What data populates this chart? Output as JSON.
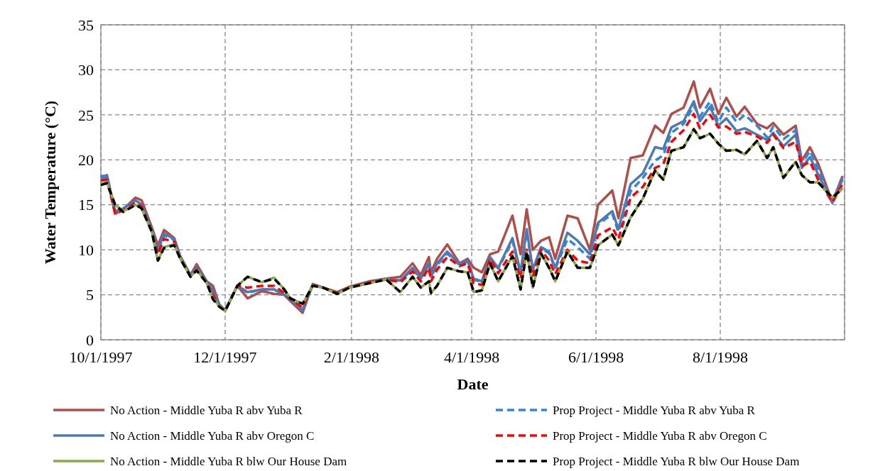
{
  "chart_data": {
    "type": "line",
    "xlabel": "Date",
    "ylabel": "Water Temperature (°C)",
    "x": [
      "1997-10-01",
      "1997-10-04",
      "1997-10-08",
      "1997-10-12",
      "1997-10-18",
      "1997-10-21",
      "1997-10-26",
      "1997-10-29",
      "1997-11-01",
      "1997-11-06",
      "1997-11-09",
      "1997-11-14",
      "1997-11-17",
      "1997-11-22",
      "1997-11-25",
      "1997-11-28",
      "1997-12-01",
      "1997-12-07",
      "1997-12-12",
      "1997-12-19",
      "1997-12-25",
      "1997-12-30",
      "1998-01-02",
      "1998-01-08",
      "1998-01-13",
      "1998-01-18",
      "1998-01-25",
      "1998-01-31",
      "1998-02-10",
      "1998-02-18",
      "1998-02-25",
      "1998-03-03",
      "1998-03-07",
      "1998-03-11",
      "1998-03-12",
      "1998-03-15",
      "1998-03-20",
      "1998-03-26",
      "1998-03-30",
      "1998-04-02",
      "1998-04-06",
      "1998-04-10",
      "1998-04-14",
      "1998-04-21",
      "1998-04-25",
      "1998-04-28",
      "1998-05-01",
      "1998-05-05",
      "1998-05-09",
      "1998-05-12",
      "1998-05-18",
      "1998-05-23",
      "1998-05-29",
      "1998-06-02",
      "1998-06-09",
      "1998-06-12",
      "1998-06-18",
      "1998-06-24",
      "1998-06-30",
      "1998-07-04",
      "1998-07-08",
      "1998-07-14",
      "1998-07-19",
      "1998-07-22",
      "1998-07-27",
      "1998-07-31",
      "1998-08-04",
      "1998-08-09",
      "1998-08-13",
      "1998-08-19",
      "1998-08-24",
      "1998-08-27",
      "1998-09-01",
      "1998-09-07",
      "1998-09-10",
      "1998-09-14",
      "1998-09-18",
      "1998-09-25",
      "1998-09-30"
    ],
    "series": [
      {
        "name": "No Action - Middle Yuba R abv Yuba R",
        "color": "#b04f4a",
        "line_style": "solid",
        "values": [
          18,
          18.3,
          14,
          14.5,
          15.8,
          15.5,
          12.5,
          10.5,
          12.2,
          11.3,
          9.3,
          7.2,
          8.4,
          6.5,
          6,
          4,
          3.2,
          6,
          4.6,
          5.4,
          5.1,
          5,
          4.3,
          3,
          6.2,
          5.8,
          5.3,
          5.9,
          6.5,
          6.8,
          7,
          8.5,
          7.2,
          9.2,
          7.5,
          9,
          10.6,
          8.5,
          9,
          8,
          7.5,
          9.5,
          9.8,
          13.8,
          9.5,
          14.5,
          10,
          11,
          11.4,
          9,
          13.8,
          13.5,
          10,
          15,
          16.6,
          13.5,
          20.2,
          20.5,
          23.8,
          23,
          25.1,
          25.8,
          28.7,
          25.8,
          27.9,
          25.1,
          26.9,
          24.8,
          25.9,
          24,
          23.5,
          24.1,
          22.8,
          23.8,
          19.9,
          21.4,
          19.6,
          15.3,
          18.2
        ]
      },
      {
        "name": "Prop Project - Middle Yuba R abv Yuba R",
        "color": "#2e86de",
        "line_style": "dashed",
        "values": [
          17.9,
          18,
          14.2,
          14.5,
          15.5,
          15,
          12.3,
          9.8,
          11.6,
          11.1,
          9.1,
          7.1,
          8,
          6.4,
          5.3,
          3.9,
          3.3,
          6,
          5.2,
          5.6,
          5.6,
          5,
          4.4,
          3.3,
          6.1,
          5.8,
          5.2,
          5.8,
          6.4,
          6.7,
          6.6,
          7.8,
          6.8,
          8.4,
          7,
          8.3,
          9.6,
          8.3,
          8.7,
          6.7,
          6.4,
          9.1,
          7.9,
          11,
          7.3,
          12,
          7.6,
          10.2,
          9.6,
          7.9,
          11.2,
          10.3,
          9,
          12.8,
          14,
          12,
          16.5,
          18,
          19.9,
          20.5,
          23,
          24,
          26,
          24.8,
          26.5,
          24.2,
          25.8,
          24.2,
          25,
          23.8,
          22.5,
          23.7,
          22.3,
          23.3,
          19.5,
          21,
          19,
          15.2,
          18
        ]
      },
      {
        "name": "No Action - Middle Yuba R abv Oregon C",
        "color": "#4a7ab8",
        "line_style": "solid",
        "values": [
          18.2,
          18.2,
          14.3,
          14.6,
          15.5,
          15,
          12.3,
          10,
          11.8,
          11.2,
          9.2,
          7.1,
          8.1,
          6.4,
          5.5,
          3.9,
          3.3,
          6,
          5.3,
          5.6,
          5.6,
          5,
          4.4,
          3.3,
          6.1,
          5.8,
          5.2,
          5.8,
          6.4,
          6.7,
          6.6,
          8,
          6.8,
          8.5,
          7,
          8.5,
          9.8,
          8.4,
          8.8,
          6.8,
          6.5,
          9.2,
          8,
          11.3,
          7.5,
          12.3,
          7.8,
          10.3,
          9.8,
          8,
          11.9,
          11,
          9.5,
          13,
          14.3,
          12.3,
          17.3,
          18.5,
          21.4,
          21.2,
          23.6,
          24.3,
          26.5,
          24.3,
          25.9,
          23.8,
          24.6,
          23.2,
          23.5,
          22.8,
          22.2,
          23,
          21.5,
          22.8,
          19.1,
          20.3,
          18.4,
          15.2,
          17.8
        ]
      },
      {
        "name": "Prop Project - Middle Yuba R abv Oregon C",
        "color": "#ff0000",
        "line_style": "dashed",
        "values": [
          17.7,
          17.8,
          14,
          14.4,
          15.2,
          14.8,
          12.1,
          9.5,
          11.2,
          10.9,
          9,
          7,
          7.9,
          6.3,
          5,
          3.8,
          3.3,
          6,
          5.8,
          6,
          6,
          5.2,
          4.5,
          3.6,
          6.1,
          5.8,
          5.2,
          5.8,
          6.4,
          6.7,
          6.4,
          7.6,
          6.5,
          8,
          6.5,
          7.8,
          9.2,
          8.2,
          8.5,
          6.3,
          6.1,
          9,
          7.4,
          9.8,
          6.8,
          10,
          7,
          10,
          8.8,
          7.3,
          10,
          8.8,
          8.5,
          11.6,
          12.5,
          11.2,
          15.8,
          17,
          19.1,
          19.5,
          22,
          23.3,
          25.1,
          23.5,
          25,
          23.6,
          23.7,
          22.9,
          23.1,
          22.6,
          21.9,
          22.8,
          21.3,
          22,
          19.3,
          19.8,
          17.8,
          15.3,
          17.3
        ]
      },
      {
        "name": "No Action - Middle Yuba R blw Our House Dam",
        "color": "#8aaa4c",
        "line_style": "solid",
        "values": [
          17.3,
          17.5,
          15,
          14.3,
          15,
          14.6,
          12,
          8.8,
          10.3,
          10.6,
          9,
          7,
          7.8,
          6.3,
          4.6,
          3.8,
          3.2,
          6,
          7,
          6.4,
          6.9,
          5.6,
          4.6,
          4,
          6,
          5.8,
          5.1,
          5.8,
          6.3,
          6.7,
          5.3,
          7,
          5.8,
          6.5,
          5.2,
          6,
          8,
          7.6,
          7.5,
          5.3,
          5.5,
          8.5,
          6.5,
          9.3,
          5.6,
          9.8,
          5.8,
          9.6,
          8,
          6.5,
          9.8,
          8,
          8,
          10.5,
          11.7,
          10.5,
          13.6,
          15.7,
          18.8,
          17.8,
          21,
          21.4,
          23.4,
          22.4,
          22.9,
          21.8,
          21,
          21.1,
          20.6,
          22.1,
          20.2,
          21.4,
          18,
          19.8,
          18.3,
          17.5,
          17.5,
          15.8,
          16.8
        ]
      },
      {
        "name": "Prop Project - Middle Yuba R blw Our House Dam",
        "color": "#000000",
        "line_style": "dashed",
        "values": [
          17.2,
          17.4,
          15,
          14.2,
          15,
          14.6,
          12,
          8.8,
          10.2,
          10.5,
          9,
          7,
          7.7,
          6.3,
          4.5,
          3.7,
          3.2,
          6,
          7,
          6.4,
          6.8,
          5.6,
          4.6,
          4,
          6,
          5.8,
          5.1,
          5.8,
          6.3,
          6.7,
          5.3,
          7,
          5.8,
          6.5,
          5.2,
          6,
          8,
          7.6,
          7.5,
          5.3,
          5.5,
          8.5,
          6.5,
          9.3,
          5.6,
          9.8,
          5.8,
          9.6,
          8,
          6.5,
          9.8,
          8,
          8,
          10.5,
          11.7,
          10.5,
          13.6,
          15.7,
          18.8,
          17.8,
          21,
          21.4,
          23.4,
          22.4,
          22.9,
          21.8,
          21,
          21.1,
          20.6,
          22.1,
          20.2,
          21.4,
          18,
          19.8,
          18.3,
          17.5,
          17.5,
          15.8,
          16.8
        ]
      }
    ],
    "xlim": [
      "1997-10-01",
      "1998-10-01"
    ],
    "xticks": [
      {
        "value": "1997-10-01",
        "label": "10/1/1997"
      },
      {
        "value": "1997-12-01",
        "label": "12/1/1997"
      },
      {
        "value": "1998-02-01",
        "label": "2/1/1998"
      },
      {
        "value": "1998-04-01",
        "label": "4/1/1998"
      },
      {
        "value": "1998-06-01",
        "label": "6/1/1998"
      },
      {
        "value": "1998-08-01",
        "label": "8/1/1998"
      },
      {
        "value": "1998-10-01",
        "label": null
      }
    ],
    "ylim": [
      0,
      35
    ],
    "yticks": [
      0,
      5,
      10,
      15,
      20,
      25,
      30,
      35
    ],
    "grid": true,
    "legend": "bottom"
  }
}
